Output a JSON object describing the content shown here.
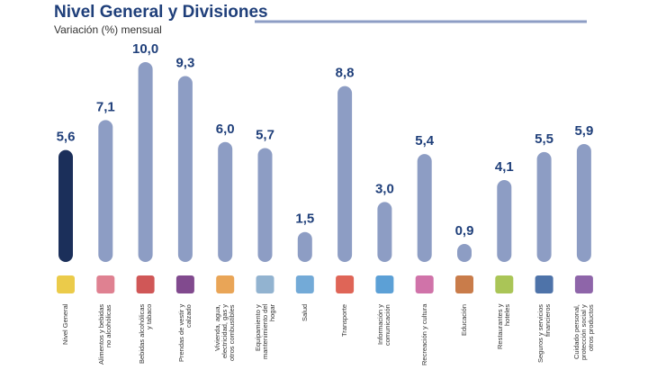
{
  "chart_data": {
    "type": "bar",
    "title": "Nivel General y Divisiones",
    "subtitle": "Variación (%) mensual",
    "categories": [
      "Nivel General",
      "Alimentos y bebidas no alcohólicas",
      "Bebidas alcohólicas y tabaco",
      "Prendas de vestir y calzado",
      "Vivienda, agua, electricidad, gas y otros combustibles",
      "Equipamiento y mantenimiento del hogar",
      "Salud",
      "Transporte",
      "Información y comunicación",
      "Recreación y cultura",
      "Educación",
      "Restaurantes y hoteles",
      "Seguros y servicios financieros",
      "Cuidado personal, protección social y otros productos"
    ],
    "values": [
      5.6,
      7.1,
      10.0,
      9.3,
      6.0,
      5.7,
      1.5,
      8.8,
      3.0,
      5.4,
      0.9,
      4.1,
      5.5,
      5.9
    ],
    "value_labels": [
      "5,6",
      "7,1",
      "10,0",
      "9,3",
      "6,0",
      "5,7",
      "1,5",
      "8,8",
      "3,0",
      "5,4",
      "0,9",
      "4,1",
      "5,5",
      "5,9"
    ],
    "colors": [
      "#1b2f5a",
      "#8d9dc4",
      "#8d9dc4",
      "#8d9dc4",
      "#8d9dc4",
      "#8d9dc4",
      "#8d9dc4",
      "#8d9dc4",
      "#8d9dc4",
      "#8d9dc4",
      "#8d9dc4",
      "#8d9dc4",
      "#8d9dc4",
      "#8d9dc4"
    ]
  }
}
